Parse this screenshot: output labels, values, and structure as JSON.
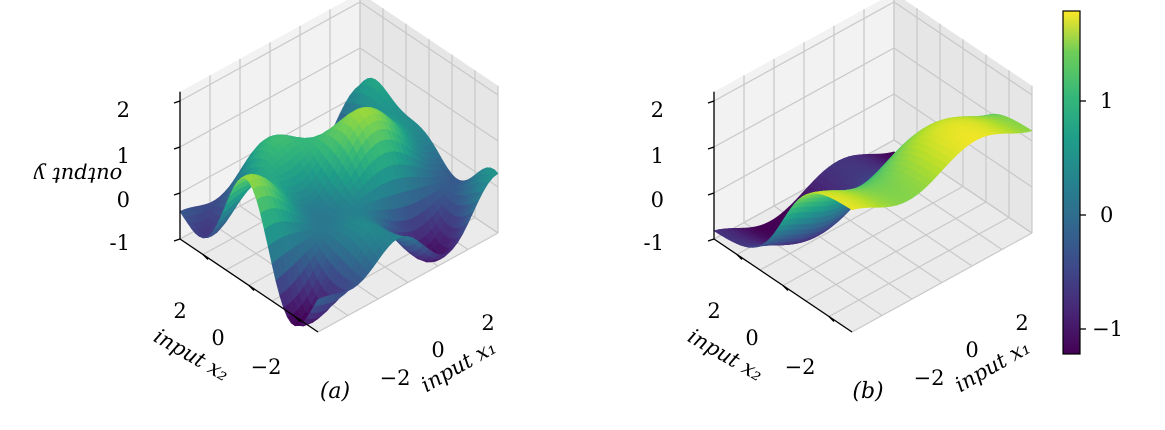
{
  "figure": {
    "panels": [
      {
        "id": "a",
        "label": "(a)",
        "zlabel": "output y",
        "xlabel": "input x₁",
        "ylabel": "input x₂"
      },
      {
        "id": "b",
        "label": "(b)",
        "zlabel": "",
        "xlabel": "input x₁",
        "ylabel": "input x₂"
      }
    ],
    "colorbar": {
      "ticks": [
        "1",
        "0",
        "−1"
      ],
      "min": -1.25,
      "max": 1.75,
      "colormap": "viridis"
    }
  },
  "chart_data": [
    {
      "type": "surface",
      "title": "(a)",
      "xlabel": "input x1",
      "ylabel": "input x2",
      "zlabel": "output y",
      "xlim": [
        -3,
        3
      ],
      "ylim": [
        -3,
        3
      ],
      "zlim": [
        -1,
        2
      ],
      "x_ticks": [
        "−2",
        "0",
        "2"
      ],
      "y_ticks": [
        "−2",
        "0",
        "2"
      ],
      "z_ticks": [
        "-1",
        "0",
        "1",
        "2"
      ],
      "surface": "oscillatory function of x1 and x2, range approx -1.2 to 1.8",
      "colormap": "viridis",
      "grid": true
    },
    {
      "type": "surface",
      "title": "(b)",
      "xlabel": "input x1",
      "ylabel": "input x2",
      "zlabel": "",
      "xlim": [
        -3,
        3
      ],
      "ylim": [
        -3,
        3
      ],
      "zlim": [
        -1,
        2
      ],
      "x_ticks": [
        "−2",
        "0",
        "2"
      ],
      "y_ticks": [
        "−2",
        "0",
        "2"
      ],
      "z_ticks": [
        "-1",
        "0",
        "1",
        "2"
      ],
      "surface": "smooth ridge varying mainly along x2, range approx -1.2 to 1.7",
      "colormap": "viridis",
      "grid": true
    }
  ]
}
